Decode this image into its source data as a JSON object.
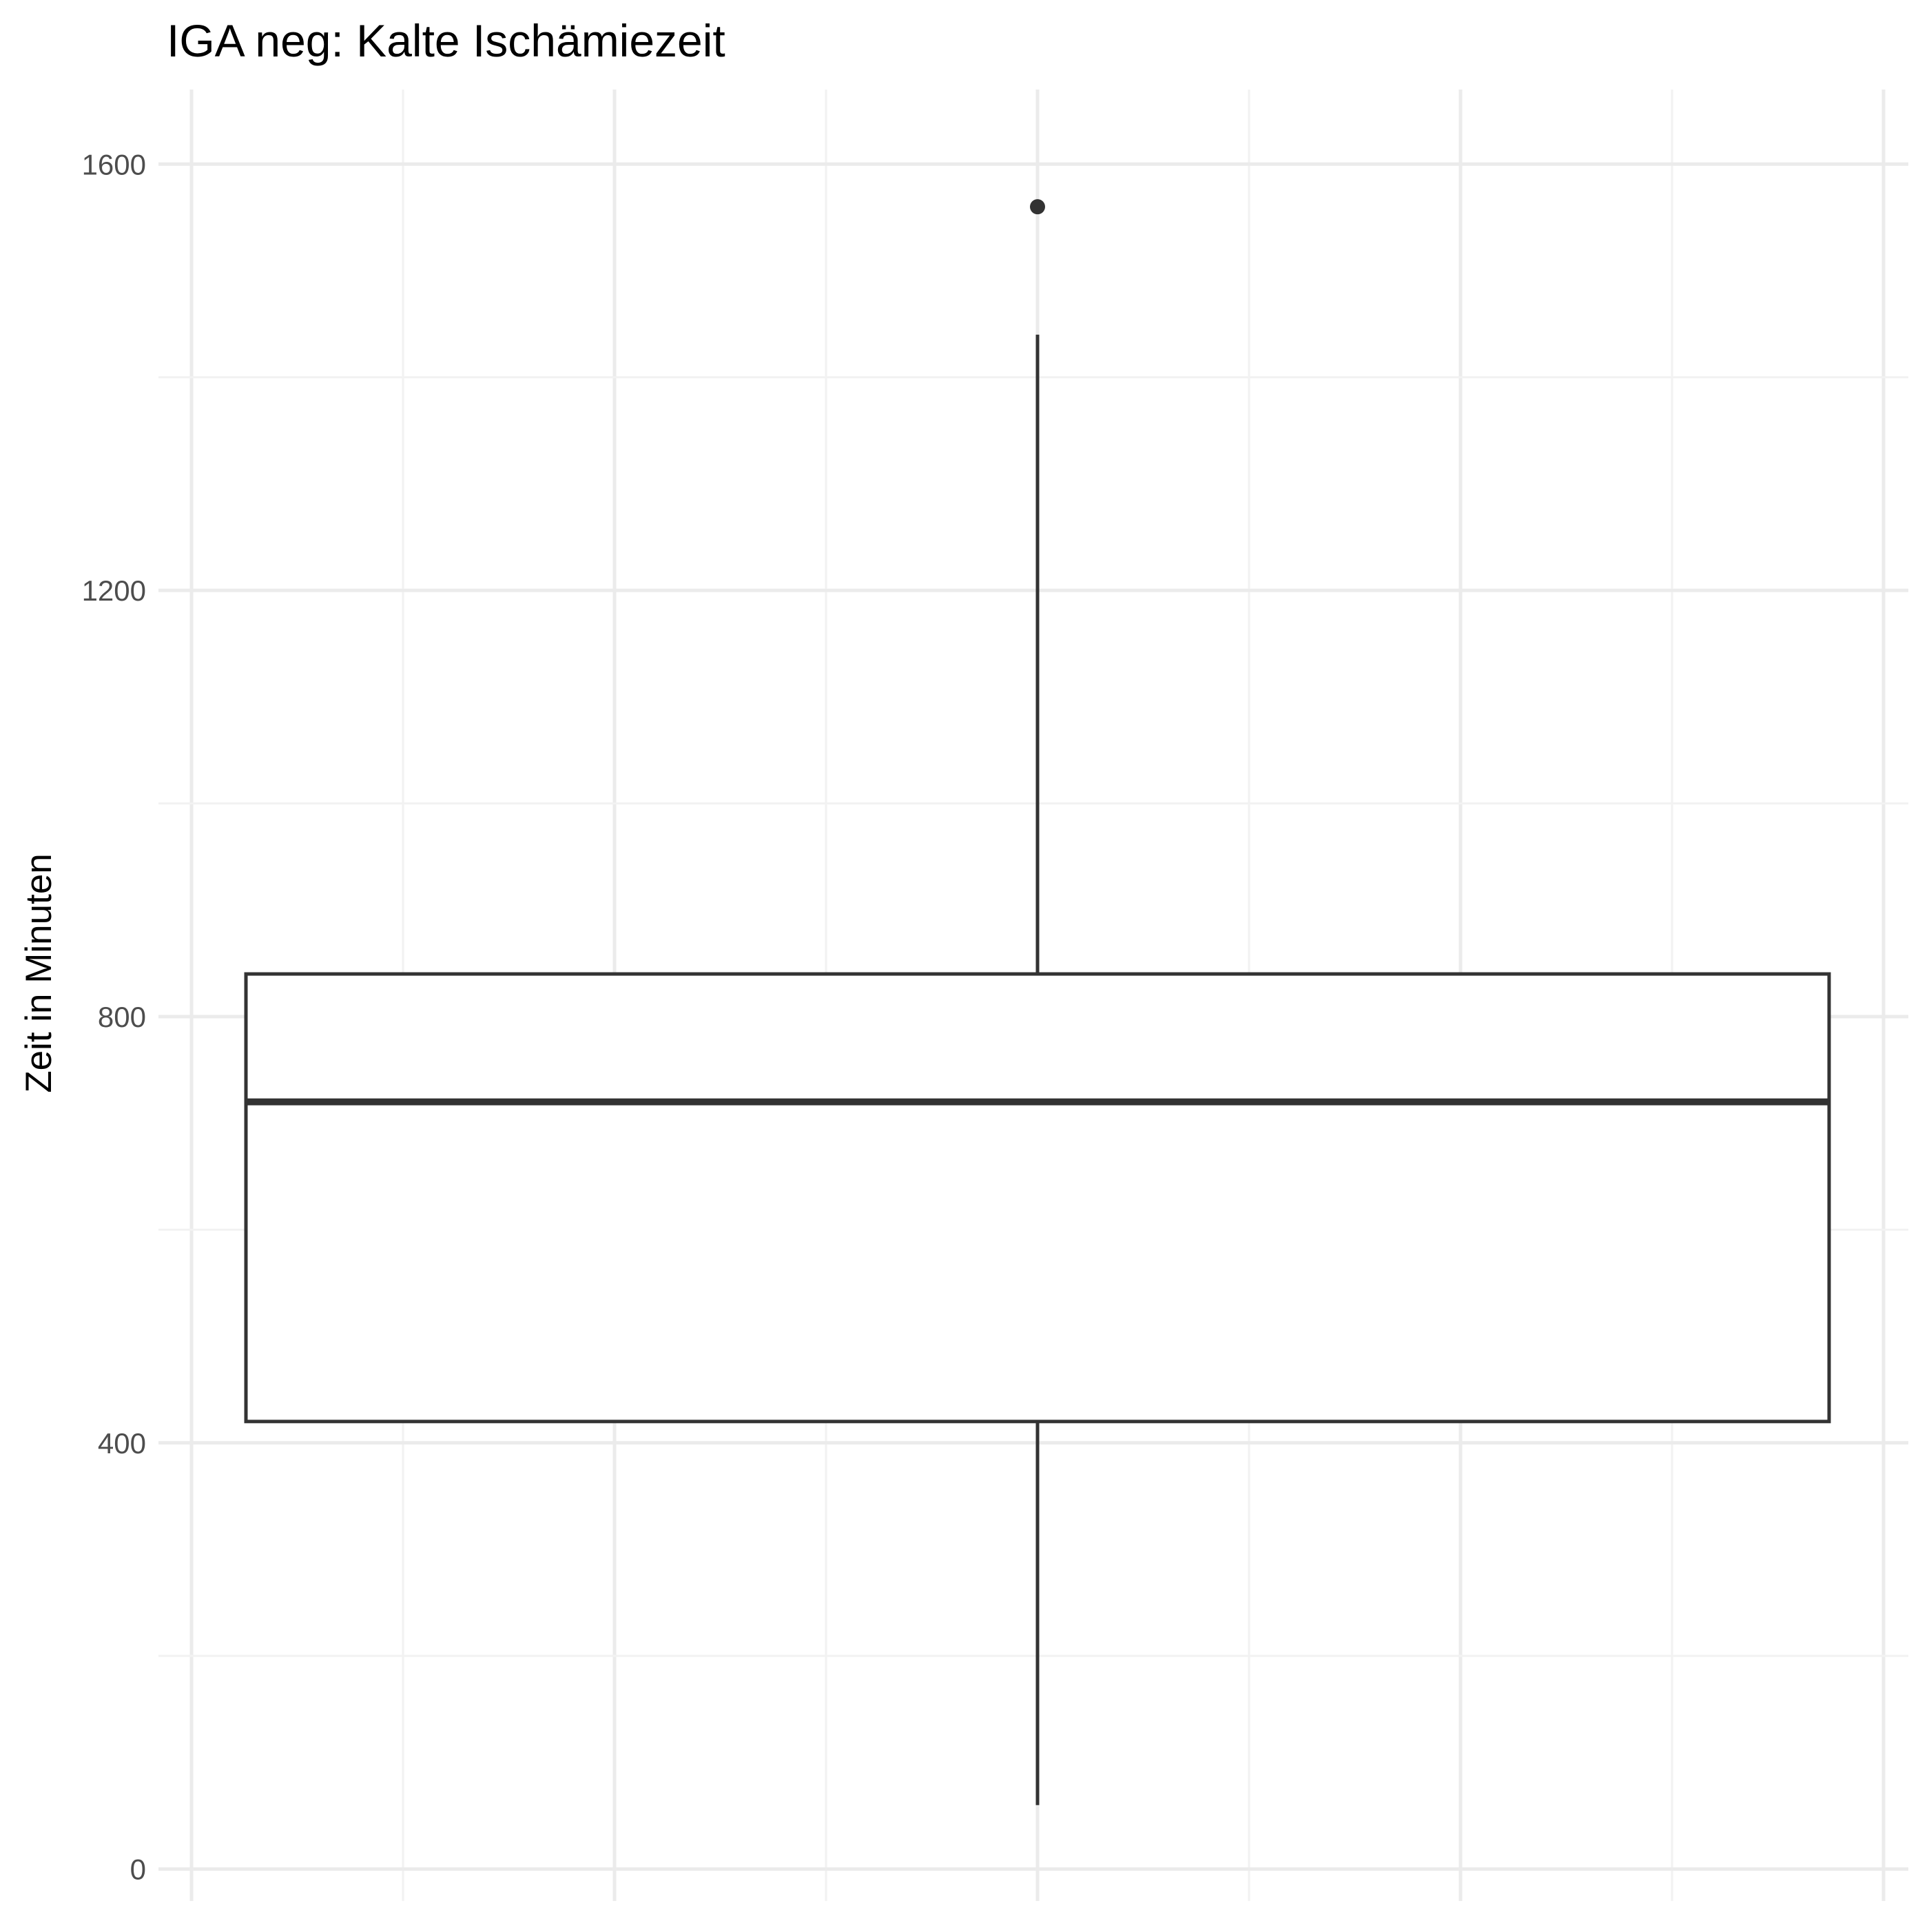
{
  "chart_data": {
    "type": "boxplot",
    "title": "IGA neg: Kalte Ischämiezeit",
    "xlabel": "",
    "ylabel": "Zeit in Minuten",
    "ylim": [
      -30,
      1670
    ],
    "y_ticks": [
      0,
      400,
      800,
      1200,
      1600
    ],
    "y_tick_labels": [
      "0",
      "400",
      "800",
      "1200",
      "1600"
    ],
    "y_minor_ticks": [
      200,
      600,
      1000,
      1400
    ],
    "grid": true,
    "legend": "none",
    "series": [
      {
        "name": "Kalte Ischämiezeit",
        "whisker_low": 60,
        "q1": 420,
        "median": 720,
        "q3": 840,
        "whisker_high": 1440,
        "outliers": [
          1560
        ]
      }
    ]
  },
  "colors": {
    "background": "#ffffff",
    "grid_major": "#ebebeb",
    "grid_minor": "#f2f2f2",
    "box_stroke": "#333333",
    "box_fill": "#ffffff",
    "tick_text": "#4d4d4d",
    "title_text": "#000000"
  }
}
